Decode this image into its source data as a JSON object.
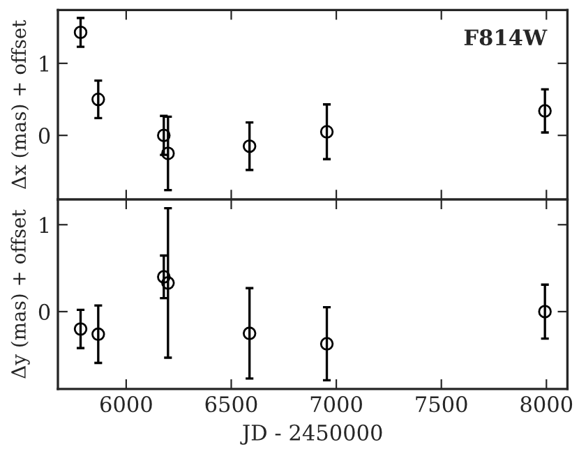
{
  "chart_data": [
    {
      "type": "scatter",
      "ylabel": "Δx (mas) + offset",
      "annotations": [
        "F814W"
      ],
      "x": [
        5783,
        5867,
        6179,
        6199,
        6587,
        6955,
        7993
      ],
      "series": [
        {
          "color": "#000000",
          "values": [
            1.43,
            0.5,
            0.0,
            -0.25,
            -0.15,
            0.05,
            0.34
          ],
          "errors": [
            0.2,
            0.26,
            0.27,
            0.51,
            0.33,
            0.38,
            0.3
          ]
        }
      ],
      "xlim": [
        5675,
        8100
      ],
      "xticks": [
        6000,
        6500,
        7000,
        7500,
        8000
      ],
      "ylim": [
        -0.89,
        1.74
      ],
      "yticks": [
        0,
        1
      ],
      "tick_labels": "y",
      "marker": "circle",
      "grid": false,
      "legend": false
    },
    {
      "type": "scatter",
      "ylabel": "Δy (mas) + offset",
      "xlabel": "JD - 2450000",
      "x": [
        5783,
        5867,
        6179,
        6199,
        6587,
        6955,
        7993
      ],
      "series": [
        {
          "color": "#000000",
          "values": [
            -0.2,
            -0.26,
            0.4,
            0.33,
            -0.25,
            -0.37,
            0.0
          ],
          "errors": [
            0.22,
            0.33,
            0.245,
            0.86,
            0.52,
            0.42,
            0.31
          ]
        }
      ],
      "xlim": [
        5675,
        8100
      ],
      "xticks": [
        6000,
        6500,
        7000,
        7500,
        8000
      ],
      "ylim": [
        -0.89,
        1.29
      ],
      "yticks": [
        0,
        1
      ],
      "marker": "circle",
      "grid": false,
      "legend": false
    }
  ]
}
